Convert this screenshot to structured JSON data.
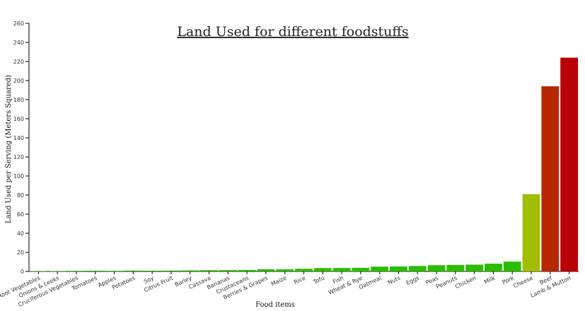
{
  "chart_data": {
    "type": "bar",
    "title": "Land Used for different foodstuffs",
    "xlabel": "Food items",
    "ylabel": "Land Used per Serving (Meters Squared)",
    "ylim": [
      0,
      260
    ],
    "yticks": [
      0,
      20,
      40,
      60,
      80,
      100,
      120,
      140,
      160,
      180,
      200,
      220,
      240,
      260
    ],
    "grid": false,
    "categories": [
      "Root Vegetables",
      "Onions & Leeks",
      "Cruciferous Vegetables",
      "Tomatoes",
      "Apples",
      "Potatoes",
      "Soy",
      "Citrus Fruit",
      "Barley",
      "Cassava",
      "Bananas",
      "Crustaceans",
      "Berries & Grapes",
      "Maize",
      "Rice",
      "Tofu",
      "Fish",
      "Wheat & Rye",
      "Oatmeal",
      "Nuts",
      "Eggs",
      "Peas",
      "Peanuts",
      "Chicken",
      "Milk",
      "Pork",
      "Cheese",
      "Beef",
      "Lamb & Mutton"
    ],
    "values": [
      0.3,
      0.4,
      0.6,
      0.8,
      0.6,
      0.9,
      0.8,
      0.9,
      1.1,
      1.3,
      1.4,
      1.6,
      2.3,
      2.2,
      2.8,
      3.5,
      3.6,
      3.8,
      5.0,
      5.2,
      5.7,
      6.5,
      6.8,
      7.1,
      8.1,
      10.3,
      81,
      194,
      224
    ],
    "colors": [
      "#2bbd00",
      "#2bbd00",
      "#2bbd00",
      "#2bbd00",
      "#2bbd00",
      "#2bbd00",
      "#2bbd00",
      "#2bbd00",
      "#2bbd00",
      "#2bbd00",
      "#2bbd00",
      "#2bbd00",
      "#2bbd00",
      "#2bbd00",
      "#2bbd00",
      "#2bbd00",
      "#2bbd00",
      "#2bbd00",
      "#2bbd00",
      "#2bbd00",
      "#2bbd00",
      "#2bbd00",
      "#2bbd00",
      "#2bbd00",
      "#2bbd00",
      "#2bbd00",
      "#a0bd00",
      "#b82800",
      "#b80006"
    ]
  }
}
